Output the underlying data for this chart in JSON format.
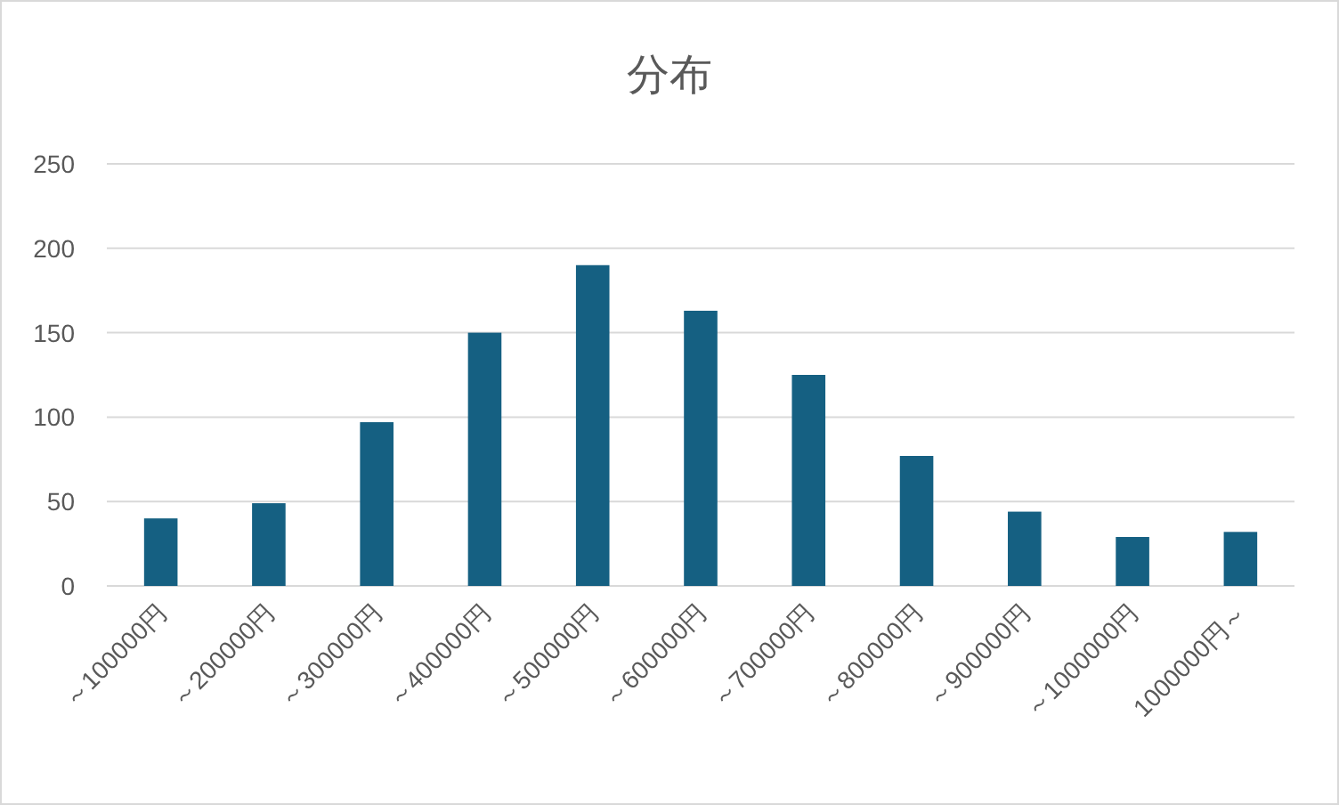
{
  "chart_data": {
    "type": "bar",
    "title": "分布",
    "categories": [
      "～100000円",
      "～200000円",
      "～300000円",
      "～400000円",
      "～500000円",
      "～600000円",
      "～700000円",
      "～800000円",
      "～900000円",
      "～1000000円",
      "1000000円～"
    ],
    "values": [
      40,
      49,
      97,
      150,
      190,
      163,
      125,
      77,
      44,
      29,
      32
    ],
    "color": "#156082",
    "ylim": [
      0,
      250
    ],
    "yticks": [
      0,
      50,
      100,
      150,
      200,
      250
    ],
    "grid": "y"
  }
}
